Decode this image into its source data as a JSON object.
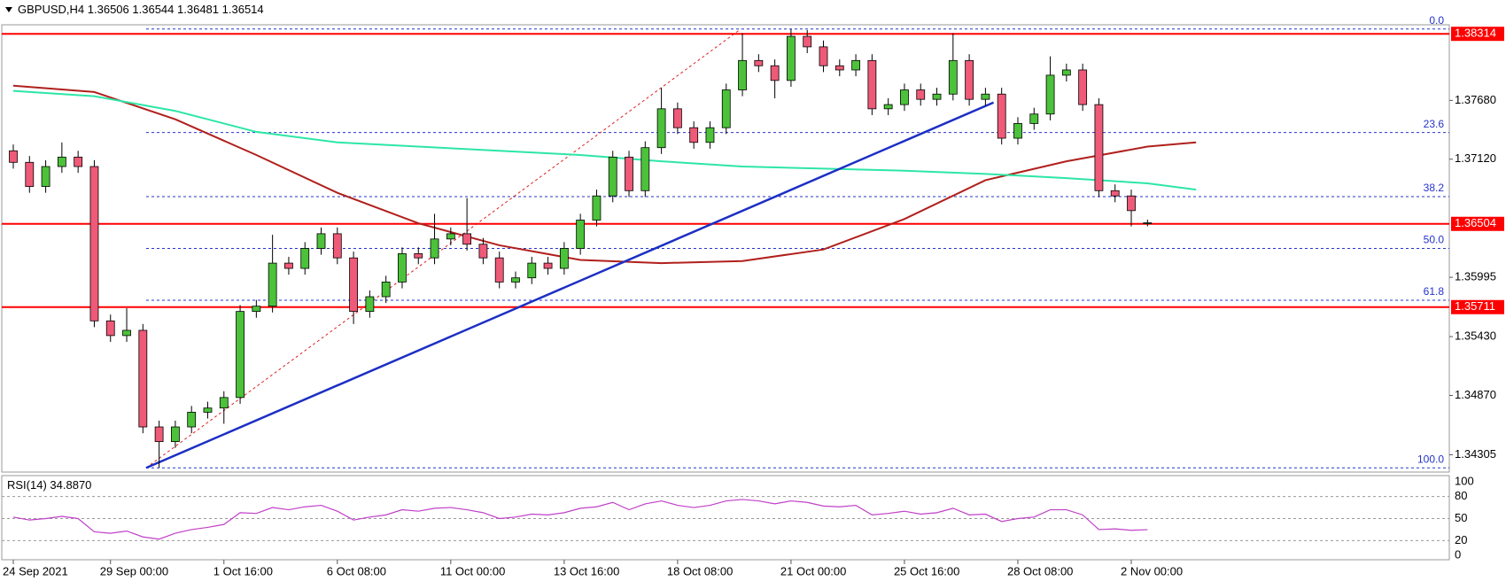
{
  "chart_data": [
    {
      "type": "candlestick",
      "symbol": "GBPUSD,H4",
      "categories": [
        "24 Sep 2021",
        null,
        null,
        null,
        null,
        null,
        "29 Sep 00:00",
        null,
        null,
        null,
        null,
        null,
        null,
        "1 Oct 16:00",
        null,
        null,
        null,
        null,
        null,
        null,
        "6 Oct 08:00",
        null,
        null,
        null,
        null,
        null,
        null,
        "11 Oct 00:00",
        null,
        null,
        null,
        null,
        null,
        null,
        "13 Oct 16:00",
        null,
        null,
        null,
        null,
        null,
        null,
        "18 Oct 08:00",
        null,
        null,
        null,
        null,
        null,
        null,
        "21 Oct 00:00",
        null,
        null,
        null,
        null,
        null,
        null,
        "25 Oct 16:00",
        null,
        null,
        null,
        null,
        null,
        null,
        "28 Oct 08:00",
        null,
        null,
        null,
        null,
        null,
        null,
        "2 Nov 00:00",
        null
      ],
      "open": [
        1.372,
        1.3709,
        1.3686,
        1.3705,
        1.3714,
        1.3705,
        1.3558,
        1.3544,
        1.3549,
        1.3457,
        1.3443,
        1.3457,
        1.3471,
        1.3475,
        1.3485,
        1.3567,
        1.3572,
        1.3613,
        1.3608,
        1.3627,
        1.3641,
        1.3618,
        1.3567,
        1.3581,
        1.3595,
        1.3622,
        1.3618,
        1.3636,
        1.3641,
        1.3631,
        1.3618,
        1.3595,
        1.3599,
        1.3613,
        1.3608,
        1.3627,
        1.3654,
        1.3677,
        1.3714,
        1.3682,
        1.3723,
        1.376,
        1.3742,
        1.3728,
        1.3742,
        1.3778,
        1.3806,
        1.3801,
        1.3787,
        1.3829,
        1.3819,
        1.3801,
        1.3797,
        1.3806,
        1.376,
        1.3764,
        1.3778,
        1.3769,
        1.3774,
        1.3806,
        1.3769,
        1.3774,
        1.3732,
        1.3746,
        1.3755,
        1.3792,
        1.3797,
        1.3764,
        1.3682,
        1.3677,
        1.36506
      ],
      "high": [
        1.3726,
        1.3715,
        1.3711,
        1.3728,
        1.372,
        1.3711,
        1.3564,
        1.357,
        1.3555,
        1.3463,
        1.3463,
        1.3477,
        1.3481,
        1.3491,
        1.3573,
        1.3578,
        1.364,
        1.3619,
        1.3633,
        1.3647,
        1.3647,
        1.3624,
        1.3587,
        1.3601,
        1.3628,
        1.3628,
        1.366,
        1.3647,
        1.3675,
        1.3637,
        1.3624,
        1.3605,
        1.3619,
        1.3619,
        1.3633,
        1.366,
        1.3683,
        1.372,
        1.372,
        1.3729,
        1.378,
        1.3766,
        1.3748,
        1.3748,
        1.3784,
        1.3832,
        1.3812,
        1.3807,
        1.3836,
        1.3835,
        1.3825,
        1.3807,
        1.3812,
        1.3812,
        1.377,
        1.3784,
        1.3784,
        1.378,
        1.3832,
        1.3812,
        1.378,
        1.378,
        1.3752,
        1.3761,
        1.381,
        1.3803,
        1.3803,
        1.377,
        1.3688,
        1.3683,
        1.36544
      ],
      "low": [
        1.3703,
        1.368,
        1.368,
        1.3699,
        1.3699,
        1.3552,
        1.3538,
        1.3538,
        1.3451,
        1.3418,
        1.3437,
        1.3451,
        1.3465,
        1.346,
        1.3479,
        1.3561,
        1.3566,
        1.3602,
        1.3602,
        1.3621,
        1.3612,
        1.3555,
        1.3561,
        1.3575,
        1.3589,
        1.3612,
        1.3612,
        1.363,
        1.3625,
        1.3612,
        1.3589,
        1.3589,
        1.3593,
        1.3602,
        1.3602,
        1.3621,
        1.3648,
        1.3671,
        1.3676,
        1.3676,
        1.3717,
        1.3736,
        1.3722,
        1.3722,
        1.3736,
        1.3772,
        1.3795,
        1.377,
        1.3781,
        1.3813,
        1.3795,
        1.3791,
        1.3791,
        1.3754,
        1.3754,
        1.3758,
        1.3763,
        1.3763,
        1.3768,
        1.3763,
        1.3763,
        1.3726,
        1.3726,
        1.374,
        1.3749,
        1.3786,
        1.3758,
        1.3676,
        1.3671,
        1.3648,
        1.36481
      ],
      "close": [
        1.3709,
        1.3686,
        1.3705,
        1.3714,
        1.3705,
        1.3558,
        1.3544,
        1.3549,
        1.3457,
        1.3443,
        1.3457,
        1.3471,
        1.3475,
        1.3485,
        1.3567,
        1.3572,
        1.3613,
        1.3608,
        1.3627,
        1.3641,
        1.3618,
        1.3567,
        1.3581,
        1.3595,
        1.3622,
        1.3618,
        1.3636,
        1.3641,
        1.3631,
        1.3618,
        1.3595,
        1.3599,
        1.3613,
        1.3608,
        1.3627,
        1.3654,
        1.3677,
        1.3714,
        1.3682,
        1.3723,
        1.376,
        1.3742,
        1.3728,
        1.3742,
        1.3778,
        1.3806,
        1.3801,
        1.3787,
        1.3829,
        1.3819,
        1.3801,
        1.3797,
        1.3806,
        1.376,
        1.3764,
        1.3778,
        1.3769,
        1.3774,
        1.3806,
        1.3769,
        1.3774,
        1.3732,
        1.3746,
        1.3755,
        1.3792,
        1.3797,
        1.3764,
        1.3682,
        1.3677,
        1.3663,
        1.36514
      ],
      "up_color": "#4cc23a",
      "down_color": "#ee5a78",
      "ylim": [
        1.3414,
        1.384
      ],
      "yticks": [
        {
          "value": 1.3768,
          "label": "1.37680"
        },
        {
          "value": 1.3712,
          "label": "1.37120"
        },
        1.35995,
        {
          "value": 1.3543,
          "label": "1.35430"
        },
        {
          "value": 1.3487,
          "label": "1.34870"
        },
        1.34305
      ],
      "levels": [
        1.38314,
        1.36504,
        1.35711
      ],
      "level_color": "#ff0000",
      "moving_averages": [
        {
          "color": "#b0201c",
          "x": [
            0,
            5,
            10,
            15,
            20,
            25,
            30,
            35,
            40,
            45,
            50,
            55,
            60,
            65,
            70,
            73
          ],
          "values": [
            1.3782,
            1.3776,
            1.375,
            1.3716,
            1.368,
            1.3651,
            1.363,
            1.3616,
            1.3613,
            1.3615,
            1.3626,
            1.3655,
            1.3692,
            1.371,
            1.3724,
            1.3728
          ]
        },
        {
          "color": "#2de6a6",
          "x": [
            0,
            5,
            10,
            15,
            20,
            25,
            30,
            35,
            40,
            45,
            50,
            55,
            60,
            65,
            70,
            73
          ],
          "values": [
            1.3777,
            1.3772,
            1.3758,
            1.3738,
            1.3728,
            1.3724,
            1.372,
            1.3716,
            1.371,
            1.3705,
            1.3703,
            1.3701,
            1.3698,
            1.3694,
            1.3689,
            1.3683
          ]
        }
      ],
      "trendline": {
        "color": "#1c2fc4",
        "x": [
          8.2,
          60.5
        ],
        "values": [
          1.3418,
          1.3766
        ]
      },
      "fibonacci": {
        "color": "#2433cc",
        "line_color": "#e02020",
        "x": [
          8.2,
          44.9
        ],
        "values": [
          1.3418,
          1.3836
        ],
        "levels": [
          {
            "value": 0,
            "label": "0.0",
            "price": 1.3836
          },
          {
            "value": 23.6,
            "price": 1.37374
          },
          {
            "value": 38.2,
            "price": 1.36763
          },
          {
            "value": 50,
            "label": "50.0",
            "price": 1.3627
          },
          {
            "value": 61.8,
            "price": 1.35777
          },
          {
            "value": 100,
            "label": "100.0",
            "price": 1.3418
          }
        ]
      }
    },
    {
      "type": "line",
      "title": "RSI(14)",
      "last_label": "34.8870",
      "color": "#c040c8",
      "values": [
        52,
        48,
        50,
        53,
        50,
        32,
        30,
        33,
        25,
        22,
        30,
        35,
        38,
        42,
        58,
        57,
        65,
        62,
        66,
        68,
        60,
        48,
        52,
        55,
        62,
        60,
        64,
        65,
        62,
        58,
        50,
        52,
        56,
        55,
        58,
        64,
        66,
        72,
        62,
        70,
        74,
        68,
        65,
        68,
        74,
        76,
        74,
        70,
        74,
        72,
        67,
        66,
        68,
        55,
        57,
        60,
        56,
        58,
        64,
        55,
        56,
        46,
        50,
        52,
        62,
        62,
        55,
        35,
        36,
        34,
        34.887
      ],
      "ylim": [
        0,
        100
      ],
      "yticks": [
        100,
        80,
        50,
        20,
        0
      ],
      "levels": [
        80,
        50,
        20
      ]
    }
  ]
}
